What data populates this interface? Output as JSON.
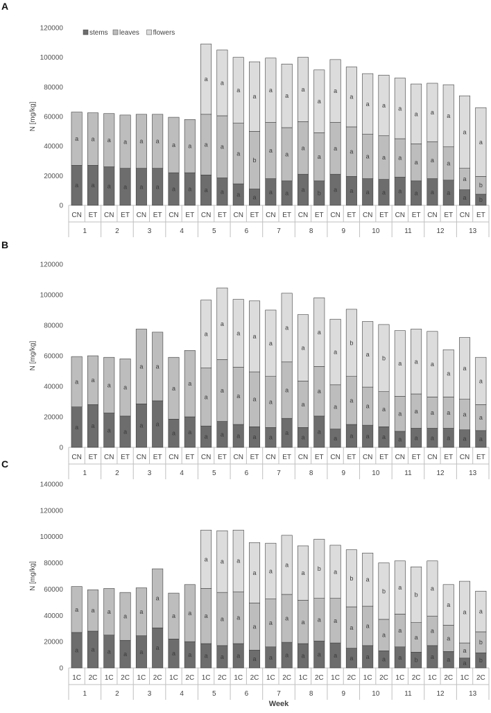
{
  "colors": {
    "stems": "#6d6d6d",
    "leaves": "#bdbdbd",
    "flowers": "#dcdcdc",
    "axis": "#bfbfbf",
    "bar_border": "#3c3c3c"
  },
  "legend": {
    "stems": "stems",
    "leaves": "leaves",
    "flowers": "flowers"
  },
  "xlabel": "Week",
  "chart_data": [
    {
      "panel": "A",
      "type": "bar",
      "stacked": true,
      "ylabel": "N [mg/kg]",
      "ylim": [
        0,
        120000
      ],
      "yticks": [
        "0",
        "20000",
        "40000",
        "60000",
        "80000",
        "100000",
        "120000"
      ],
      "weeks": [
        "1",
        "2",
        "3",
        "4",
        "5",
        "6",
        "7",
        "8",
        "9",
        "10",
        "11",
        "12",
        "13"
      ],
      "categories": [
        "CN",
        "ET",
        "CN",
        "ET",
        "CN",
        "ET",
        "CN",
        "ET",
        "CN",
        "ET",
        "CN",
        "ET",
        "CN",
        "ET",
        "CN",
        "ET",
        "CN",
        "ET",
        "CN",
        "ET",
        "CN",
        "ET",
        "CN",
        "ET",
        "CN",
        "ET"
      ],
      "legend_position": "top-left",
      "series": [
        {
          "name": "stems",
          "values": [
            27000,
            27000,
            26000,
            25000,
            25000,
            25000,
            22000,
            22000,
            20500,
            18500,
            14500,
            11000,
            18000,
            16500,
            21000,
            16500,
            21000,
            19500,
            18000,
            17500,
            19000,
            16500,
            18000,
            17000,
            10500,
            7500
          ]
        },
        {
          "name": "leaves",
          "values": [
            36000,
            35500,
            36000,
            36000,
            36500,
            36500,
            37500,
            36000,
            41000,
            42000,
            41000,
            39000,
            38000,
            36000,
            35500,
            32500,
            35000,
            33500,
            30000,
            29500,
            26000,
            25000,
            25000,
            22500,
            14500,
            12000
          ]
        },
        {
          "name": "flowers",
          "values": [
            0,
            0,
            0,
            0,
            0,
            0,
            0,
            0,
            47500,
            44500,
            44500,
            47000,
            43500,
            43000,
            43500,
            42500,
            42500,
            40500,
            41000,
            41000,
            41000,
            40500,
            39500,
            42000,
            49000,
            46500
          ]
        }
      ],
      "significance": [
        {
          "stems": "a",
          "leaves": "a",
          "flowers": ""
        },
        {
          "stems": "a",
          "leaves": "a",
          "flowers": ""
        },
        {
          "stems": "a",
          "leaves": "a",
          "flowers": ""
        },
        {
          "stems": "a",
          "leaves": "a",
          "flowers": ""
        },
        {
          "stems": "a",
          "leaves": "a",
          "flowers": ""
        },
        {
          "stems": "a",
          "leaves": "a",
          "flowers": ""
        },
        {
          "stems": "a",
          "leaves": "a",
          "flowers": ""
        },
        {
          "stems": "a",
          "leaves": "a",
          "flowers": ""
        },
        {
          "stems": "a",
          "leaves": "a",
          "flowers": "a"
        },
        {
          "stems": "a",
          "leaves": "a",
          "flowers": "a"
        },
        {
          "stems": "a",
          "leaves": "a",
          "flowers": "a"
        },
        {
          "stems": "a",
          "leaves": "b",
          "flowers": "a"
        },
        {
          "stems": "a",
          "leaves": "a",
          "flowers": "a"
        },
        {
          "stems": "a",
          "leaves": "a",
          "flowers": "a"
        },
        {
          "stems": "a",
          "leaves": "a",
          "flowers": "a"
        },
        {
          "stems": "b",
          "leaves": "a",
          "flowers": "a"
        },
        {
          "stems": "a",
          "leaves": "a",
          "flowers": "a"
        },
        {
          "stems": "a",
          "leaves": "a",
          "flowers": "a"
        },
        {
          "stems": "a",
          "leaves": "a",
          "flowers": "a"
        },
        {
          "stems": "a",
          "leaves": "a",
          "flowers": "a"
        },
        {
          "stems": "a",
          "leaves": "a",
          "flowers": "a"
        },
        {
          "stems": "a",
          "leaves": "a",
          "flowers": "a"
        },
        {
          "stems": "a",
          "leaves": "a",
          "flowers": "a"
        },
        {
          "stems": "a",
          "leaves": "a",
          "flowers": "a"
        },
        {
          "stems": "a",
          "leaves": "a",
          "flowers": "a"
        },
        {
          "stems": "b",
          "leaves": "b",
          "flowers": "a"
        }
      ]
    },
    {
      "panel": "B",
      "type": "bar",
      "stacked": true,
      "ylabel": "N [mg/kg]",
      "ylim": [
        0,
        120000
      ],
      "yticks": [
        "0",
        "20000",
        "40000",
        "60000",
        "80000",
        "100000",
        "120000"
      ],
      "weeks": [
        "1",
        "2",
        "3",
        "4",
        "5",
        "6",
        "7",
        "8",
        "9",
        "10",
        "11",
        "12",
        "13"
      ],
      "categories": [
        "CN",
        "ET",
        "CN",
        "ET",
        "CN",
        "ET",
        "CN",
        "ET",
        "CN",
        "ET",
        "CN",
        "ET",
        "CN",
        "ET",
        "CN",
        "ET",
        "CN",
        "ET",
        "CN",
        "ET",
        "CN",
        "ET",
        "CN",
        "ET",
        "CN",
        "ET"
      ],
      "series": [
        {
          "name": "stems",
          "values": [
            26500,
            28000,
            22500,
            20500,
            28500,
            30500,
            18500,
            20000,
            14000,
            17000,
            15000,
            13500,
            13000,
            19000,
            13000,
            20500,
            12000,
            15000,
            14500,
            13500,
            10500,
            12500,
            12500,
            12500,
            11500,
            11000
          ]
        },
        {
          "name": "leaves",
          "values": [
            33000,
            32000,
            36500,
            37500,
            49000,
            45000,
            40500,
            43500,
            38000,
            40500,
            37500,
            36000,
            33500,
            37000,
            30500,
            32500,
            29000,
            31500,
            25000,
            23000,
            23000,
            22500,
            20500,
            20500,
            20000,
            17000
          ]
        },
        {
          "name": "flowers",
          "values": [
            0,
            0,
            0,
            0,
            0,
            0,
            0,
            0,
            44500,
            47000,
            44500,
            46500,
            43500,
            45000,
            43500,
            45000,
            43000,
            44000,
            43000,
            44000,
            43000,
            42500,
            43000,
            31000,
            40500,
            31000
          ]
        }
      ],
      "significance": [
        {
          "stems": "a",
          "leaves": "a",
          "flowers": ""
        },
        {
          "stems": "a",
          "leaves": "a",
          "flowers": ""
        },
        {
          "stems": "a",
          "leaves": "a",
          "flowers": ""
        },
        {
          "stems": "a",
          "leaves": "a",
          "flowers": ""
        },
        {
          "stems": "a",
          "leaves": "a",
          "flowers": ""
        },
        {
          "stems": "a",
          "leaves": "a",
          "flowers": ""
        },
        {
          "stems": "a",
          "leaves": "a",
          "flowers": ""
        },
        {
          "stems": "a",
          "leaves": "a",
          "flowers": ""
        },
        {
          "stems": "a",
          "leaves": "a",
          "flowers": "a"
        },
        {
          "stems": "a",
          "leaves": "a",
          "flowers": "a"
        },
        {
          "stems": "a",
          "leaves": "a",
          "flowers": "a"
        },
        {
          "stems": "a",
          "leaves": "a",
          "flowers": "a"
        },
        {
          "stems": "a",
          "leaves": "a",
          "flowers": "a"
        },
        {
          "stems": "a",
          "leaves": "a",
          "flowers": "a"
        },
        {
          "stems": "a",
          "leaves": "a",
          "flowers": "a"
        },
        {
          "stems": "a",
          "leaves": "a",
          "flowers": "a"
        },
        {
          "stems": "a",
          "leaves": "a",
          "flowers": "a"
        },
        {
          "stems": "a",
          "leaves": "a",
          "flowers": "b"
        },
        {
          "stems": "a",
          "leaves": "a",
          "flowers": "a"
        },
        {
          "stems": "a",
          "leaves": "a",
          "flowers": "b"
        },
        {
          "stems": "a",
          "leaves": "a",
          "flowers": "a"
        },
        {
          "stems": "a",
          "leaves": "a",
          "flowers": "a"
        },
        {
          "stems": "a",
          "leaves": "a",
          "flowers": "a"
        },
        {
          "stems": "a",
          "leaves": "a",
          "flowers": "a"
        },
        {
          "stems": "a",
          "leaves": "a",
          "flowers": "a"
        },
        {
          "stems": "a",
          "leaves": "a",
          "flowers": "a"
        }
      ]
    },
    {
      "panel": "C",
      "type": "bar",
      "stacked": true,
      "ylabel": "N [mg/kg]",
      "ylim": [
        0,
        140000
      ],
      "yticks": [
        "0",
        "20000",
        "40000",
        "60000",
        "80000",
        "100000",
        "120000",
        "140000"
      ],
      "weeks": [
        "1",
        "2",
        "3",
        "4",
        "5",
        "6",
        "7",
        "8",
        "9",
        "10",
        "11",
        "12",
        "13"
      ],
      "categories": [
        "1C",
        "2C",
        "1C",
        "2C",
        "1C",
        "2C",
        "1C",
        "2C",
        "1C",
        "2C",
        "1C",
        "2C",
        "1C",
        "2C",
        "1C",
        "2C",
        "1C",
        "2C",
        "1C",
        "2C",
        "1C",
        "2C",
        "1C",
        "2C",
        "1C",
        "2C"
      ],
      "series": [
        {
          "name": "stems",
          "values": [
            27000,
            28000,
            25000,
            21000,
            24500,
            30500,
            22000,
            20000,
            18500,
            17000,
            18500,
            13500,
            16000,
            19500,
            18500,
            20500,
            19000,
            15000,
            17000,
            13000,
            16000,
            12000,
            17000,
            12500,
            7500,
            11500
          ]
        },
        {
          "name": "leaves",
          "values": [
            35000,
            31500,
            35500,
            36500,
            36500,
            45000,
            35000,
            43500,
            42000,
            40500,
            39500,
            36000,
            36500,
            36500,
            33000,
            32500,
            34000,
            31500,
            30000,
            24000,
            25000,
            22500,
            22500,
            20000,
            11500,
            16000
          ]
        },
        {
          "name": "flowers",
          "values": [
            0,
            0,
            0,
            0,
            0,
            0,
            0,
            0,
            44500,
            47000,
            47000,
            46000,
            42500,
            45000,
            41500,
            45000,
            40500,
            43500,
            40500,
            43000,
            40500,
            42500,
            42000,
            31000,
            47000,
            31000
          ]
        }
      ],
      "significance": [
        {
          "stems": "a",
          "leaves": "a",
          "flowers": ""
        },
        {
          "stems": "a",
          "leaves": "a",
          "flowers": ""
        },
        {
          "stems": "a",
          "leaves": "a",
          "flowers": ""
        },
        {
          "stems": "a",
          "leaves": "a",
          "flowers": ""
        },
        {
          "stems": "a",
          "leaves": "a",
          "flowers": ""
        },
        {
          "stems": "a",
          "leaves": "a",
          "flowers": ""
        },
        {
          "stems": "a",
          "leaves": "a",
          "flowers": ""
        },
        {
          "stems": "a",
          "leaves": "a",
          "flowers": ""
        },
        {
          "stems": "a",
          "leaves": "a",
          "flowers": "a"
        },
        {
          "stems": "a",
          "leaves": "a",
          "flowers": "a"
        },
        {
          "stems": "a",
          "leaves": "a",
          "flowers": "a"
        },
        {
          "stems": "a",
          "leaves": "a",
          "flowers": "a"
        },
        {
          "stems": "a",
          "leaves": "a",
          "flowers": "a"
        },
        {
          "stems": "a",
          "leaves": "a",
          "flowers": "a"
        },
        {
          "stems": "a",
          "leaves": "a",
          "flowers": "a"
        },
        {
          "stems": "a",
          "leaves": "a",
          "flowers": "b"
        },
        {
          "stems": "a",
          "leaves": "a",
          "flowers": "a"
        },
        {
          "stems": "a",
          "leaves": "a",
          "flowers": "b"
        },
        {
          "stems": "a",
          "leaves": "a",
          "flowers": "a"
        },
        {
          "stems": "a",
          "leaves": "a",
          "flowers": "b"
        },
        {
          "stems": "a",
          "leaves": "a",
          "flowers": "a"
        },
        {
          "stems": "b",
          "leaves": "a",
          "flowers": "b"
        },
        {
          "stems": "a",
          "leaves": "a",
          "flowers": "a"
        },
        {
          "stems": "a",
          "leaves": "a",
          "flowers": "a"
        },
        {
          "stems": "a",
          "leaves": "a",
          "flowers": "a"
        },
        {
          "stems": "b",
          "leaves": "b",
          "flowers": "a"
        }
      ]
    }
  ]
}
